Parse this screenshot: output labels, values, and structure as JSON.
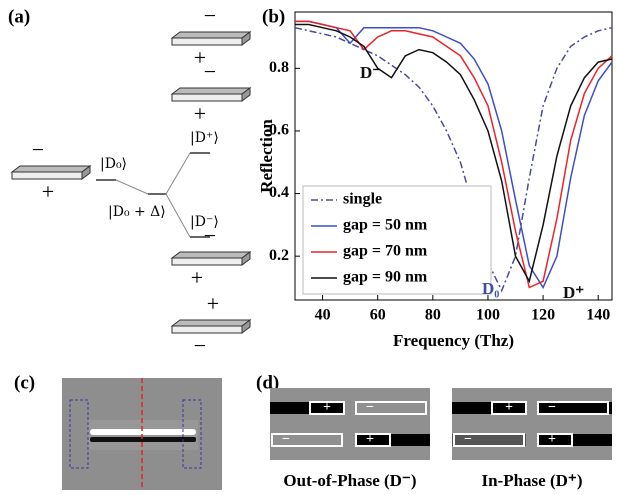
{
  "panel_a": {
    "label": "(a)",
    "plates": [
      {
        "top": "−",
        "bottom": "+"
      },
      {
        "top": "−",
        "bottom": "+"
      },
      {
        "top": "−",
        "bottom": "+"
      },
      {
        "top": "−",
        "bottom": "+"
      },
      {
        "top": "+",
        "bottom": "−"
      }
    ],
    "levels": [
      "|D₀⟩",
      "|D₀ + Δ⟩",
      "|D⁺⟩",
      "|D⁻⟩"
    ]
  },
  "chart_data": {
    "type": "line",
    "label": "(b)",
    "x_label": "Frequency (Thz)",
    "y_label": "Reflection",
    "x": [
      30,
      35,
      40,
      45,
      50,
      55,
      60,
      65,
      70,
      75,
      80,
      85,
      90,
      95,
      100,
      105,
      110,
      115,
      120,
      125,
      130,
      135,
      140,
      145
    ],
    "series": [
      {
        "name": "single",
        "color": "#4a4aa0",
        "style": "dashdot",
        "values": [
          0.93,
          0.92,
          0.91,
          0.9,
          0.88,
          0.86,
          0.84,
          0.81,
          0.78,
          0.74,
          0.68,
          0.6,
          0.5,
          0.35,
          0.18,
          0.09,
          0.2,
          0.45,
          0.68,
          0.8,
          0.87,
          0.9,
          0.92,
          0.93
        ]
      },
      {
        "name": "gap = 50 nm",
        "color": "#3a4fc8",
        "style": "solid",
        "values": [
          0.95,
          0.95,
          0.94,
          0.93,
          0.88,
          0.93,
          0.93,
          0.93,
          0.93,
          0.93,
          0.92,
          0.9,
          0.88,
          0.83,
          0.75,
          0.6,
          0.38,
          0.17,
          0.1,
          0.2,
          0.45,
          0.65,
          0.76,
          0.82
        ]
      },
      {
        "name": "gap = 70 nm",
        "color": "#e8242a",
        "style": "solid",
        "values": [
          0.95,
          0.95,
          0.94,
          0.93,
          0.92,
          0.86,
          0.9,
          0.92,
          0.92,
          0.91,
          0.9,
          0.87,
          0.84,
          0.77,
          0.68,
          0.5,
          0.28,
          0.1,
          0.12,
          0.32,
          0.57,
          0.72,
          0.8,
          0.84
        ]
      },
      {
        "name": "gap = 90 nm",
        "color": "#111111",
        "style": "solid",
        "values": [
          0.94,
          0.94,
          0.93,
          0.92,
          0.9,
          0.87,
          0.8,
          0.77,
          0.84,
          0.86,
          0.85,
          0.82,
          0.78,
          0.7,
          0.6,
          0.44,
          0.2,
          0.12,
          0.3,
          0.52,
          0.68,
          0.77,
          0.82,
          0.83
        ]
      }
    ],
    "xlim": [
      30,
      145
    ],
    "xticks": [
      40,
      60,
      80,
      100,
      120,
      140
    ],
    "ylim": [
      0.06,
      0.98
    ],
    "yticks": [
      0.2,
      0.4,
      0.6,
      0.8
    ],
    "legend": "lower-left",
    "annotations": [
      {
        "text": "D⁻",
        "color": "#111111"
      },
      {
        "text": "D₀",
        "color": "#3b4fa0"
      },
      {
        "text": "D⁺",
        "color": "#111111"
      }
    ]
  },
  "panel_c": {
    "label": "(c)"
  },
  "panel_d": {
    "label": "(d)",
    "images": [
      {
        "caption": "Out-of-Phase (D⁻)",
        "signs": [
          "+",
          "−",
          "−",
          "+"
        ]
      },
      {
        "caption": "In-Phase (D⁺)",
        "signs": [
          "+",
          "−",
          "−",
          "+"
        ]
      }
    ]
  }
}
